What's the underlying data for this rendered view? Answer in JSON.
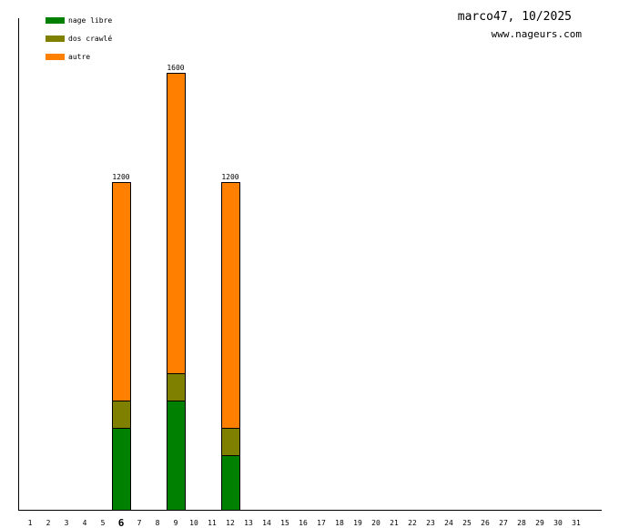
{
  "header": {
    "title": "marco47, 10/2025",
    "site": "www.nageurs.com"
  },
  "colors": {
    "nage_libre": "#008000",
    "dos_crawle": "#808000",
    "autre": "#ff8000",
    "axis": "#000000"
  },
  "chart_data": {
    "type": "bar",
    "stacked": true,
    "x": [
      1,
      2,
      3,
      4,
      5,
      6,
      7,
      8,
      9,
      10,
      11,
      12,
      13,
      14,
      15,
      16,
      17,
      18,
      19,
      20,
      21,
      22,
      23,
      24,
      25,
      26,
      27,
      28,
      29,
      30,
      31
    ],
    "highlighted_tick": 6,
    "ylim": [
      0,
      1800
    ],
    "grid": false,
    "legend_position": "top-left",
    "series": [
      {
        "name": "nage libre",
        "color": "#008000",
        "points": [
          {
            "x": 6,
            "y": 300
          },
          {
            "x": 9,
            "y": 400
          },
          {
            "x": 12,
            "y": 200
          }
        ]
      },
      {
        "name": "dos crawlé",
        "color": "#808000",
        "points": [
          {
            "x": 6,
            "y": 100
          },
          {
            "x": 9,
            "y": 100
          },
          {
            "x": 12,
            "y": 100
          }
        ]
      },
      {
        "name": "autre",
        "color": "#ff8000",
        "points": [
          {
            "x": 6,
            "y": 800
          },
          {
            "x": 9,
            "y": 1100
          },
          {
            "x": 12,
            "y": 900
          }
        ]
      }
    ],
    "totals": [
      {
        "x": 6,
        "label": "1200"
      },
      {
        "x": 9,
        "label": "1600"
      },
      {
        "x": 12,
        "label": "1200"
      }
    ]
  }
}
